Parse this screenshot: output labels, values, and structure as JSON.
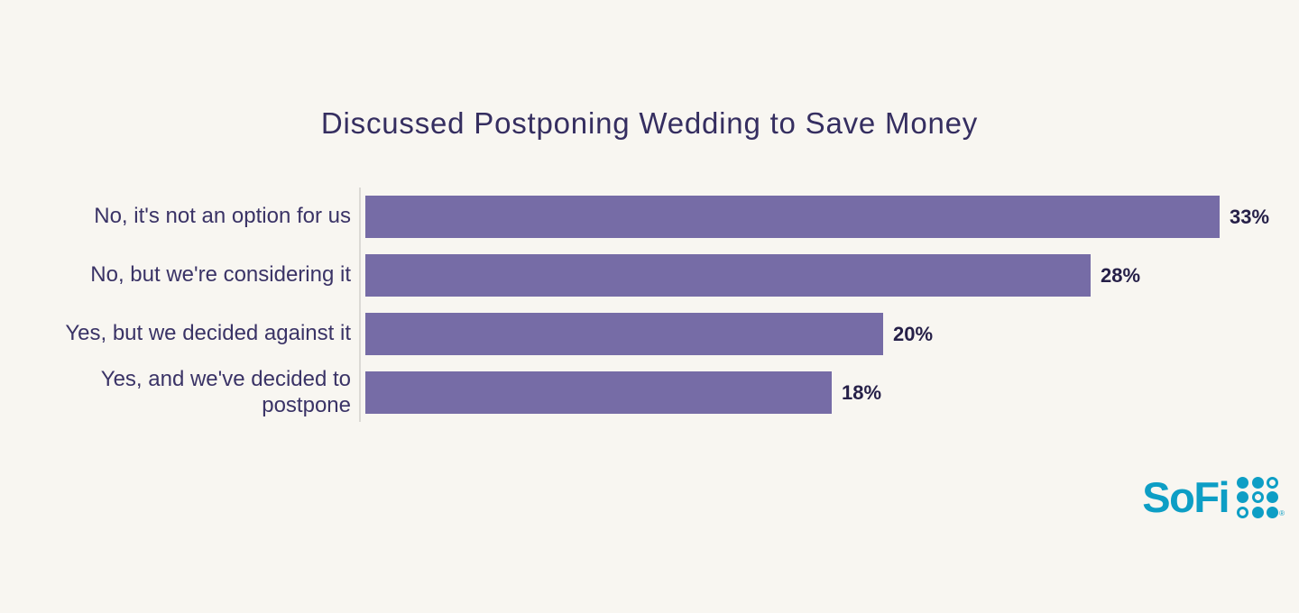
{
  "page": {
    "background_color": "#f8f6f1"
  },
  "chart_data": {
    "type": "bar",
    "orientation": "horizontal",
    "title": "Discussed Postponing Wedding to Save Money",
    "categories": [
      "No, it's not an option for us",
      "No, but we're considering it",
      "Yes, but we decided against it",
      "Yes, and we've decided to postpone"
    ],
    "values": [
      33,
      28,
      20,
      18
    ],
    "value_labels": [
      "33%",
      "28%",
      "20%",
      "18%"
    ],
    "xlabel": "",
    "ylabel": "",
    "xlim": [
      0,
      33
    ],
    "grid": false,
    "legend": false,
    "bar_color": "#766ca6",
    "category_label_color": "#3a3366",
    "value_label_color": "#262048",
    "title_color": "#352e60",
    "axis_line_color": "#dbd9d5"
  },
  "branding": {
    "logo_text": "SoFi",
    "logo_color": "#0d9ec5",
    "trademark": "®",
    "dot_pattern": [
      [
        1,
        1,
        0
      ],
      [
        1,
        0,
        1
      ],
      [
        0,
        1,
        1
      ]
    ]
  }
}
